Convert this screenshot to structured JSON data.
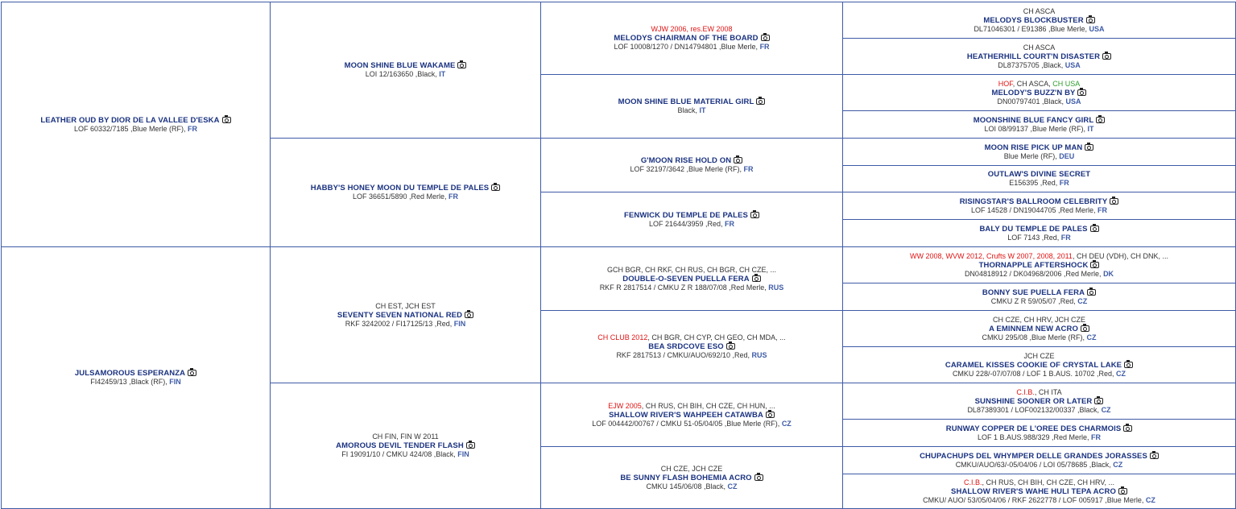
{
  "dogs": {
    "g1_1": {
      "titles": [],
      "name": "LEATHER OUD BY DIOR DE LA VALLEE D'ESKA",
      "photo_icon": "camera-icon",
      "info": "LOF 60332/7185 ,Blue Merle (RF), ",
      "country": "FR"
    },
    "g1_2": {
      "titles": [],
      "name": "JULSAMOROUS ESPERANZA",
      "photo_icon": "camera-icon",
      "info": "FI42459/13 ,Black (RF), ",
      "country": "FIN"
    },
    "g2_1": {
      "titles": [],
      "name": "MOON SHINE BLUE WAKAME",
      "photo_icon": "camera-icon",
      "info": "LOI 12/163650 ,Black, ",
      "country": "IT"
    },
    "g2_2": {
      "titles": [],
      "name": "HABBY'S HONEY MOON DU TEMPLE DE PALES",
      "photo_icon": "camera-icon",
      "info": "LOF 36651/5890 ,Red Merle, ",
      "country": "FR"
    },
    "g2_3": {
      "titles": [
        {
          "text": "CH EST, JCH EST",
          "color": ""
        }
      ],
      "name": "SEVENTY SEVEN NATIONAL RED",
      "photo_icon": "camera-icon",
      "info": "RKF 3242002 / FI17125/13 ,Red, ",
      "country": "FIN"
    },
    "g2_4": {
      "titles": [
        {
          "text": "CH FIN, FIN W 2011",
          "color": ""
        }
      ],
      "name": "AMOROUS DEVIL TENDER FLASH",
      "photo_icon": "camera-icon",
      "info": "FI 19091/10 / CMKU 424/08 ,Black, ",
      "country": "FIN"
    },
    "g3_1": {
      "titles": [
        {
          "text": "WJW 2006, res.EW 2008",
          "color": "red"
        }
      ],
      "name": "MELODYS CHAIRMAN OF THE BOARD",
      "photo_icon": "camera-icon",
      "info": "LOF 10008/1270 / DN14794801 ,Blue Merle, ",
      "country": "FR"
    },
    "g3_2": {
      "titles": [],
      "name": "MOON SHINE BLUE MATERIAL GIRL",
      "photo_icon": "camera-icon",
      "info": "Black, ",
      "country": "IT"
    },
    "g3_3": {
      "titles": [],
      "name": "G'MOON RISE HOLD ON",
      "photo_icon": "camera-icon",
      "info": "LOF 32197/3642 ,Blue Merle (RF), ",
      "country": "FR"
    },
    "g3_4": {
      "titles": [],
      "name": "FENWICK DU TEMPLE DE PALES",
      "photo_icon": "camera-icon",
      "info": "LOF 21644/3959 ,Red, ",
      "country": "FR"
    },
    "g3_5": {
      "titles": [
        {
          "text": "GCH BGR, CH RKF, CH RUS, CH BGR, CH CZE, ...",
          "color": ""
        }
      ],
      "name": "DOUBLE-O-SEVEN PUELLA FERA",
      "photo_icon": "camera-icon",
      "info": "RKF R 2817514 / CMKU Z R 188/07/08 ,Red Merle, ",
      "country": "RUS"
    },
    "g3_6": {
      "titles": [
        {
          "text": "CH CLUB 2012",
          "color": "red"
        },
        {
          "text": ", CH BGR, CH CYP, CH GEO, CH MDA, ...",
          "color": ""
        }
      ],
      "name": "BEA SRDCOVE ESO",
      "photo_icon": "camera-icon",
      "info": "RKF 2817513 / CMKU/AUO/692/10 ,Red, ",
      "country": "RUS"
    },
    "g3_7": {
      "titles": [
        {
          "text": "EJW 2005",
          "color": "red"
        },
        {
          "text": ", CH RUS, CH BIH, CH CZE, CH HUN, ...",
          "color": ""
        }
      ],
      "name": "SHALLOW RIVER'S WAHPEEH CATAWBA",
      "photo_icon": "camera-icon",
      "info": "LOF 004442/00767 / CMKU 51-05/04/05 ,Blue Merle (RF), ",
      "country": "CZ"
    },
    "g3_8": {
      "titles": [
        {
          "text": "CH CZE, JCH CZE",
          "color": ""
        }
      ],
      "name": "BE SUNNY FLASH BOHEMIA ACRO",
      "photo_icon": "camera-icon",
      "info": "CMKU 145/06/08 ,Black, ",
      "country": "CZ"
    },
    "g4_1": {
      "titles": [
        {
          "text": "CH ASCA",
          "color": ""
        }
      ],
      "name": "MELODYS BLOCKBUSTER",
      "photo_icon": "camera-icon",
      "info": "DL71046301 / E91386 ,Blue Merle, ",
      "country": "USA"
    },
    "g4_2": {
      "titles": [
        {
          "text": "CH ASCA",
          "color": ""
        }
      ],
      "name": "HEATHERHILL COURT'N DISASTER",
      "photo_icon": "camera-icon",
      "info": "DL87375705 ,Black, ",
      "country": "USA"
    },
    "g4_3": {
      "titles": [
        {
          "text": "HOF",
          "color": "red"
        },
        {
          "text": ", CH ASCA, ",
          "color": ""
        },
        {
          "text": "CH USA",
          "color": "green"
        }
      ],
      "name": "MELODY'S BUZZ'N BY",
      "photo_icon": "camera-icon",
      "info": "DN00797401 ,Black, ",
      "country": "USA"
    },
    "g4_4": {
      "titles": [],
      "name": "MOONSHINE BLUE FANCY GIRL",
      "photo_icon": "camera-icon",
      "info": "LOI 08/99137 ,Blue Merle (RF), ",
      "country": "IT"
    },
    "g4_5": {
      "titles": [],
      "name": "MOON RISE PICK UP MAN",
      "photo_icon": "camera-icon",
      "info": "Blue Merle (RF), ",
      "country": "DEU"
    },
    "g4_6": {
      "titles": [],
      "name": "OUTLAW'S DIVINE SECRET",
      "photo_icon": "",
      "info": "E156395 ,Red, ",
      "country": "FR"
    },
    "g4_7": {
      "titles": [],
      "name": "RISINGSTAR'S BALLROOM CELEBRITY",
      "photo_icon": "camera-icon",
      "info": "LOF 14528 / DN19044705 ,Red Merle, ",
      "country": "FR"
    },
    "g4_8": {
      "titles": [],
      "name": "BALY DU TEMPLE DE PALES",
      "photo_icon": "camera-icon",
      "info": "LOF 7143 ,Red, ",
      "country": "FR"
    },
    "g4_9": {
      "titles": [
        {
          "text": "WW 2008, WVW 2012, Crufts W 2007, 2008, 2011",
          "color": "red"
        },
        {
          "text": ", CH DEU (VDH), CH DNK, ...",
          "color": ""
        }
      ],
      "name": "THORNAPPLE AFTERSHOCK",
      "photo_icon": "camera-icon",
      "info": "DN04818912 / DK04968/2006 ,Red Merle, ",
      "country": "DK"
    },
    "g4_10": {
      "titles": [],
      "name": "BONNY SUE PUELLA FERA",
      "photo_icon": "camera-icon",
      "info": "CMKU Z R 59/05/07 ,Red, ",
      "country": "CZ"
    },
    "g4_11": {
      "titles": [
        {
          "text": "CH CZE, CH HRV, JCH CZE",
          "color": ""
        }
      ],
      "name": "A EMINNEM NEW ACRO",
      "photo_icon": "camera-icon",
      "info": "CMKU 295/08 ,Blue Merle (RF), ",
      "country": "CZ"
    },
    "g4_12": {
      "titles": [
        {
          "text": "JCH CZE",
          "color": ""
        }
      ],
      "name": "CARAMEL KISSES COOKIE OF CRYSTAL LAKE",
      "photo_icon": "camera-icon",
      "info": "CMKU 228/-07/07/08 / LOF 1 B.AUS. 10702 ,Red, ",
      "country": "CZ"
    },
    "g4_13": {
      "titles": [
        {
          "text": "C.I.B.",
          "color": "red"
        },
        {
          "text": ", CH ITA",
          "color": ""
        }
      ],
      "name": "SUNSHINE SOONER OR LATER",
      "photo_icon": "camera-icon",
      "info": "DL87389301 / LOF002132/00337 ,Black, ",
      "country": "CZ"
    },
    "g4_14": {
      "titles": [],
      "name": "RUNWAY COPPER DE L'OREE DES CHARMOIS",
      "photo_icon": "camera-icon",
      "info": "LOF 1 B.AUS.988/329 ,Red Merle, ",
      "country": "FR"
    },
    "g4_15": {
      "titles": [],
      "name": "CHUPACHUPS DEL WHYMPER DELLE GRANDES JORASSES",
      "photo_icon": "camera-icon",
      "info": "CMKU/AUO/63/-05/04/06 / LOI 05/78685 ,Black, ",
      "country": "CZ"
    },
    "g4_16": {
      "titles": [
        {
          "text": "C.I.B.",
          "color": "red"
        },
        {
          "text": ", CH RUS, CH BIH, CH CZE, CH HRV, ...",
          "color": ""
        }
      ],
      "name": "SHALLOW RIVER'S WAHE HULI TEPA ACRO",
      "photo_icon": "camera-icon",
      "info": "CMKU/ AUO/ 53/05/04/06 / RKF 2622778 / LOF 005917 ,Blue Merle, ",
      "country": "CZ"
    }
  }
}
